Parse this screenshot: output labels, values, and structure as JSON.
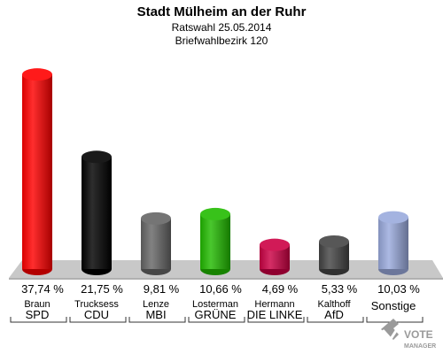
{
  "title": "Stadt Mülheim an der Ruhr",
  "subtitle": "Ratswahl 25.05.2014",
  "district": "Briefwahlbezirk 120",
  "logo": {
    "line1": "VOTE",
    "line2": "MANAGER"
  },
  "chart_data": {
    "type": "bar",
    "categories": [
      "SPD",
      "CDU",
      "MBI",
      "GRÜNE",
      "DIE LINKE",
      "AfD",
      "Sonstige"
    ],
    "candidates": [
      "Braun",
      "Trucksess",
      "Lenze",
      "Losterman",
      "Hermann",
      "Kalthoff",
      ""
    ],
    "values": [
      37.74,
      21.75,
      9.81,
      10.66,
      4.69,
      5.33,
      10.03
    ],
    "value_labels": [
      "37,74 %",
      "21,75 %",
      "9,81 %",
      "10,66 %",
      "4,69 %",
      "5,33 %",
      "10,03 %"
    ],
    "colors": [
      "#ff0000",
      "#000000",
      "#666666",
      "#22bb00",
      "#cc0044",
      "#444444",
      "#9aaadd"
    ],
    "ylim": [
      0,
      40
    ]
  }
}
